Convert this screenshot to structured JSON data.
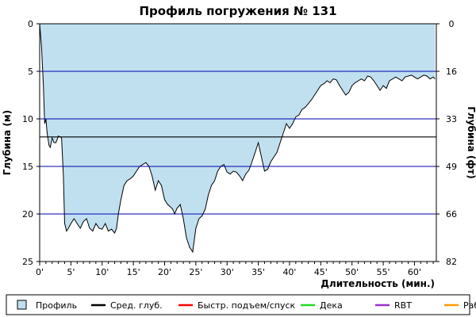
{
  "chart_data": {
    "type": "area",
    "title": "Профиль погружения № 131",
    "xlabel": "Длительность (мин.)",
    "ylabel_left": "Глубина (м)",
    "ylabel_right": "Глубина (фт)",
    "xlim": [
      0,
      63.5
    ],
    "ylim": [
      0,
      25
    ],
    "y_inverted": true,
    "x_ticks": [
      0,
      5,
      10,
      15,
      20,
      25,
      30,
      35,
      40,
      45,
      50,
      55,
      60
    ],
    "x_tick_labels": [
      "0'",
      "5'",
      "10'",
      "15'",
      "20'",
      "25'",
      "30'",
      "35'",
      "40'",
      "45'",
      "50'",
      "55'",
      "60'"
    ],
    "y_ticks_left": [
      0,
      5,
      10,
      15,
      20,
      25
    ],
    "y_ticks_right": [
      0,
      16,
      33,
      49,
      66,
      82
    ],
    "grid": "horizontal",
    "grid_color": "#0000aa",
    "profile_fill": "#c0e0f0",
    "average_depth": 11.9,
    "average_depth_color": "#000000",
    "legend": {
      "placement": "bottom",
      "items": [
        {
          "label": "Профиль",
          "kind": "box",
          "color": "#c0e0f0"
        },
        {
          "label": "Сред. глуб.",
          "kind": "line",
          "color": "#000000"
        },
        {
          "label": "Быстр. подъем/спуск",
          "kind": "line",
          "color": "#ff0000"
        },
        {
          "label": "Дека",
          "kind": "line",
          "color": "#22dd22"
        },
        {
          "label": "RBT",
          "kind": "line",
          "color": "#9933cc"
        },
        {
          "label": "Раб.",
          "kind": "line",
          "color": "#ff9900"
        }
      ]
    },
    "series": [
      {
        "x": [
          0,
          0.3,
          0.6,
          0.8,
          1.0,
          1.2,
          1.5,
          1.7,
          2.0,
          2.3,
          2.6,
          3.0,
          3.5,
          3.8,
          4.0,
          4.3,
          4.6,
          5.0,
          5.5,
          6.0,
          6.5,
          7.0,
          7.5,
          8.0,
          8.5,
          9.0,
          9.5,
          10.0,
          10.5,
          11.0,
          11.5,
          12.0,
          12.3,
          12.6,
          13.0,
          13.5,
          14.0,
          14.5,
          15.0,
          15.5,
          16.0,
          16.5,
          17.0,
          17.5,
          18.0,
          18.5,
          19.0,
          19.5,
          20.0,
          20.5,
          21.0,
          21.3,
          21.6,
          22.0,
          22.5,
          23.0,
          23.5,
          24.0,
          24.5,
          25.0,
          25.5,
          26.0,
          26.5,
          27.0,
          27.5,
          28.0,
          28.5,
          29.0,
          29.5,
          30.0,
          30.5,
          31.0,
          31.5,
          32.0,
          32.5,
          33.0,
          33.5,
          34.0,
          34.5,
          35.0,
          35.5,
          36.0,
          36.5,
          37.0,
          37.5,
          38.0,
          38.5,
          39.0,
          39.5,
          40.0,
          40.5,
          41.0,
          41.5,
          42.0,
          42.5,
          43.0,
          43.5,
          44.0,
          44.5,
          45.0,
          45.5,
          46.0,
          46.5,
          47.0,
          47.5,
          48.0,
          48.5,
          49.0,
          49.5,
          50.0,
          50.5,
          51.0,
          51.5,
          52.0,
          52.5,
          53.0,
          53.5,
          54.0,
          54.5,
          55.0,
          55.5,
          56.0,
          56.5,
          57.0,
          57.5,
          58.0,
          58.5,
          59.0,
          59.5,
          60.0,
          60.5,
          61.0,
          61.5,
          62.0,
          62.5,
          63.0,
          63.3
        ],
        "depth": [
          0,
          2.5,
          6.5,
          10.5,
          10.0,
          11.5,
          12.8,
          13.0,
          12.0,
          12.5,
          12.5,
          11.8,
          12.0,
          16.0,
          21.0,
          21.8,
          21.5,
          21.0,
          20.5,
          21.0,
          21.5,
          20.8,
          20.5,
          21.5,
          21.8,
          21.0,
          21.5,
          21.6,
          21.0,
          21.8,
          21.6,
          22.0,
          21.5,
          20.0,
          18.5,
          17.0,
          16.5,
          16.3,
          16.0,
          15.5,
          15.0,
          14.8,
          14.6,
          15.0,
          16.0,
          17.5,
          16.5,
          17.0,
          18.5,
          19.0,
          19.3,
          19.5,
          20.0,
          19.4,
          19.0,
          20.5,
          22.5,
          23.5,
          24.0,
          21.5,
          20.5,
          20.2,
          19.5,
          18.0,
          17.0,
          16.5,
          15.5,
          15.0,
          14.8,
          15.6,
          15.8,
          15.5,
          15.6,
          16.0,
          16.5,
          15.8,
          15.4,
          14.5,
          13.5,
          12.5,
          14.0,
          15.5,
          15.3,
          14.5,
          14.0,
          13.5,
          12.5,
          11.5,
          10.5,
          11.0,
          10.5,
          9.8,
          9.6,
          9.0,
          8.8,
          8.4,
          8.0,
          7.5,
          7.0,
          6.5,
          6.3,
          6.0,
          6.2,
          5.8,
          5.9,
          6.5,
          7.0,
          7.5,
          7.2,
          6.5,
          6.2,
          6.0,
          5.8,
          6.0,
          5.5,
          5.6,
          6.0,
          6.5,
          7.0,
          6.5,
          6.8,
          6.0,
          5.8,
          5.6,
          5.8,
          6.0,
          5.6,
          5.5,
          5.4,
          5.6,
          5.8,
          5.6,
          5.4,
          5.5,
          5.8,
          5.6,
          5.8
        ]
      }
    ]
  }
}
